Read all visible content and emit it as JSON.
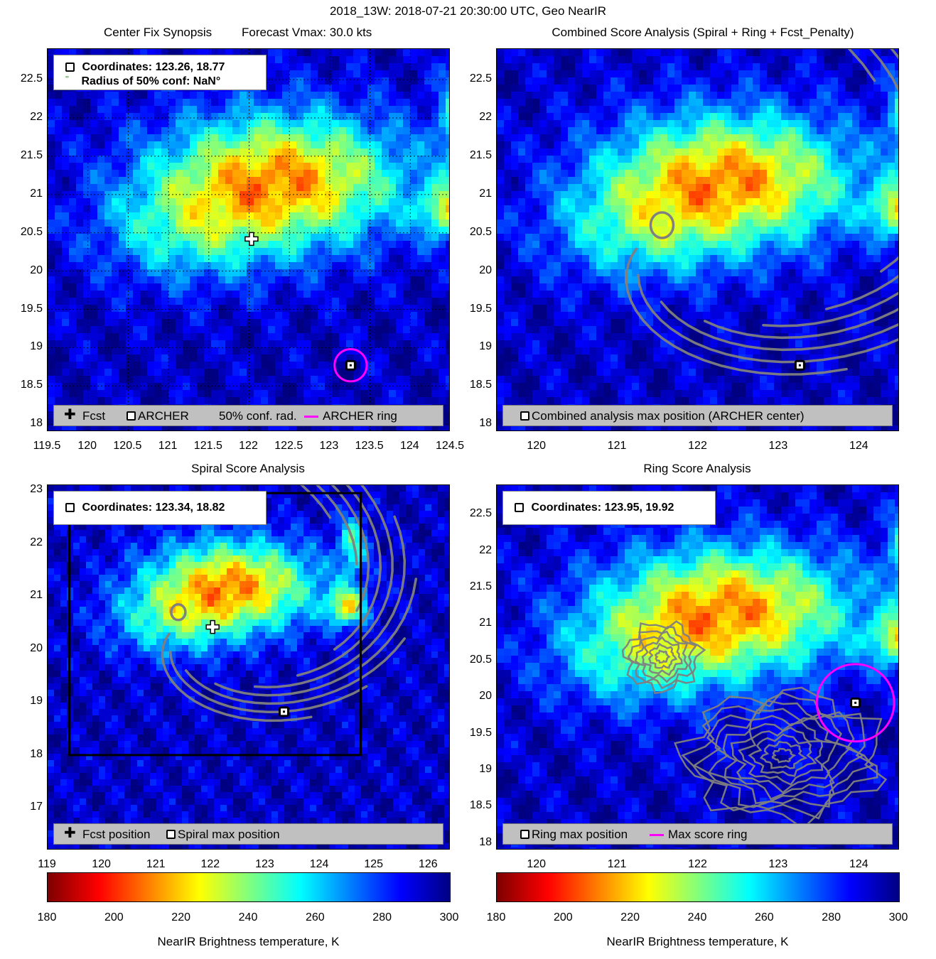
{
  "figure_title": "2018_13W: 2018-07-21 20:30:00 UTC, Geo NearIR",
  "colors": {
    "contour": "#808080",
    "ring": "#ff00ff",
    "legend_bg": "#c0c0c0"
  },
  "chart_data": [
    {
      "id": "center-fix",
      "type": "heatmap",
      "title": "Center Fix Synopsis",
      "subtitle": "Forecast Vmax: 30.0 kts",
      "x_ticks": [
        "119.5",
        "120",
        "120.5",
        "121",
        "121.5",
        "122",
        "122.5",
        "123",
        "123.5",
        "124",
        "124.5"
      ],
      "y_ticks": [
        "22.5",
        "22",
        "21.5",
        "21",
        "20.5",
        "20",
        "19.5",
        "19",
        "18.5",
        "18"
      ],
      "xlim": [
        119.5,
        124.5
      ],
      "ylim": [
        17.9,
        22.9
      ],
      "grid": true,
      "info": {
        "coordinates": "Coordinates: 123.26, 18.77",
        "radius": "Radius of 50% conf: NaN°"
      },
      "legend": [
        "Fcst",
        "ARCHER",
        "50% conf. rad.",
        "ARCHER ring"
      ],
      "markers": {
        "fcst": {
          "lon": 122.03,
          "lat": 20.42
        },
        "archer": {
          "lon": 123.26,
          "lat": 18.77
        },
        "ring_radius_deg": 0.2
      }
    },
    {
      "id": "combined-score",
      "type": "heatmap",
      "title": "Combined Score Analysis (Spiral + Ring + Fcst_Penalty)",
      "x_ticks": [
        "120",
        "121",
        "122",
        "123",
        "124"
      ],
      "y_ticks": [
        "22.5",
        "22",
        "21.5",
        "21",
        "20.5",
        "20",
        "19.5",
        "19",
        "18.5",
        "18"
      ],
      "xlim": [
        119.5,
        124.5
      ],
      "ylim": [
        17.9,
        22.9
      ],
      "legend": [
        "Combined analysis max position (ARCHER center)"
      ],
      "markers": {
        "archer": {
          "lon": 123.26,
          "lat": 18.77
        }
      }
    },
    {
      "id": "spiral-score",
      "type": "heatmap",
      "title": "Spiral Score Analysis",
      "x_ticks": [
        "119",
        "120",
        "121",
        "122",
        "123",
        "124",
        "125",
        "126"
      ],
      "y_ticks": [
        "23",
        "22",
        "21",
        "20",
        "19",
        "18",
        "17"
      ],
      "xlim": [
        119,
        126.4
      ],
      "ylim": [
        16.2,
        23.1
      ],
      "info": {
        "coordinates": "Coordinates: 123.34, 18.82"
      },
      "legend": [
        "Fcst position",
        "Spiral max position"
      ],
      "markers": {
        "fcst": {
          "lon": 122.03,
          "lat": 20.42
        },
        "spiral_max": {
          "lon": 123.34,
          "lat": 18.82
        }
      },
      "box": {
        "lon": [
          119.4,
          124.75
        ],
        "lat": [
          18.0,
          22.95
        ]
      }
    },
    {
      "id": "ring-score",
      "type": "heatmap",
      "title": "Ring Score Analysis",
      "x_ticks": [
        "120",
        "121",
        "122",
        "123",
        "124"
      ],
      "y_ticks": [
        "22.5",
        "22",
        "21.5",
        "21",
        "20.5",
        "20",
        "19.5",
        "19",
        "18.5",
        "18"
      ],
      "xlim": [
        119.5,
        124.5
      ],
      "ylim": [
        17.9,
        22.9
      ],
      "info": {
        "coordinates": "Coordinates: 123.95, 19.92"
      },
      "legend": [
        "Ring max position",
        "Max score ring"
      ],
      "markers": {
        "ring_max": {
          "lon": 123.95,
          "lat": 19.92
        },
        "ring_radius_deg": 0.48
      }
    }
  ],
  "colorbars": [
    {
      "label": "NearIR Brightness temperature, K",
      "ticks": [
        "180",
        "200",
        "220",
        "240",
        "260",
        "280",
        "300"
      ],
      "range": [
        180,
        300
      ],
      "colormap": "jet_r"
    },
    {
      "label": "NearIR Brightness temperature, K",
      "ticks": [
        "180",
        "200",
        "220",
        "240",
        "260",
        "280",
        "300"
      ],
      "range": [
        180,
        300
      ],
      "colormap": "jet_r"
    }
  ]
}
